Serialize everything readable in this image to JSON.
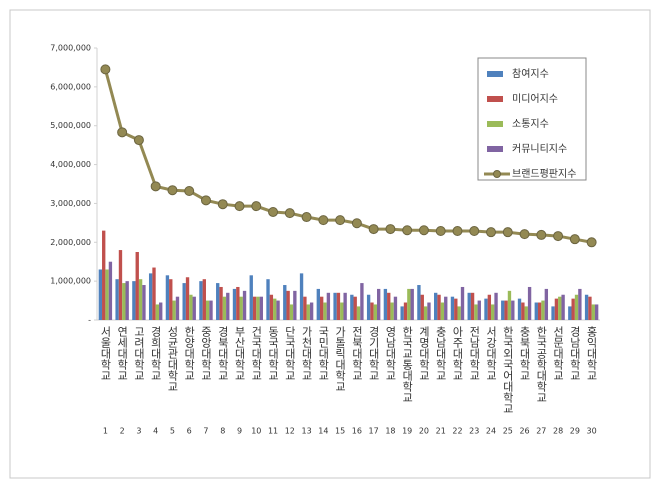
{
  "chart_data": {
    "type": "bar",
    "categories": [
      "서울대학교",
      "연세대학교",
      "고려대학교",
      "경희대학교",
      "성균관대학교",
      "한양대학교",
      "중앙대학교",
      "경북대학교",
      "부산대학교",
      "건국대학교",
      "동국대학교",
      "단국대학교",
      "가천대학교",
      "국민대학교",
      "가톨릭대학교",
      "전북대학교",
      "경기대학교",
      "영남대학교",
      "한국교통대학교",
      "계명대학교",
      "충남대학교",
      "아주대학교",
      "전남대학교",
      "서강대학교",
      "한국외국어대학교",
      "충북대학교",
      "한국공학대학교",
      "선문대학교",
      "경남대학교",
      "홍익대학교"
    ],
    "ranks": [
      1,
      2,
      3,
      4,
      5,
      6,
      7,
      8,
      9,
      10,
      11,
      12,
      13,
      14,
      15,
      16,
      17,
      18,
      19,
      20,
      21,
      22,
      23,
      24,
      25,
      26,
      27,
      28,
      29,
      30
    ],
    "series": [
      {
        "name": "참여지수",
        "type": "bar",
        "color": "#4f81bd",
        "values": [
          1300000,
          1050000,
          1000000,
          1200000,
          1150000,
          950000,
          1000000,
          950000,
          800000,
          1150000,
          1050000,
          900000,
          1200000,
          800000,
          700000,
          650000,
          650000,
          800000,
          350000,
          900000,
          700000,
          600000,
          700000,
          550000,
          500000,
          550000,
          450000,
          350000,
          350000,
          650000
        ]
      },
      {
        "name": "미디어지수",
        "type": "bar",
        "color": "#c0504d",
        "values": [
          2300000,
          1800000,
          1750000,
          1350000,
          1050000,
          1100000,
          1050000,
          850000,
          850000,
          600000,
          650000,
          750000,
          600000,
          600000,
          700000,
          600000,
          450000,
          700000,
          450000,
          650000,
          650000,
          550000,
          700000,
          650000,
          500000,
          450000,
          450000,
          550000,
          550000,
          600000
        ]
      },
      {
        "name": "소통지수",
        "type": "bar",
        "color": "#9bbb59",
        "values": [
          1300000,
          950000,
          1050000,
          400000,
          500000,
          650000,
          500000,
          600000,
          600000,
          600000,
          550000,
          400000,
          400000,
          450000,
          450000,
          350000,
          400000,
          450000,
          800000,
          350000,
          450000,
          350000,
          400000,
          400000,
          750000,
          350000,
          500000,
          600000,
          650000,
          400000
        ]
      },
      {
        "name": "커뮤니티지수",
        "type": "bar",
        "color": "#8064a2",
        "values": [
          1500000,
          1000000,
          900000,
          450000,
          600000,
          600000,
          500000,
          700000,
          750000,
          600000,
          500000,
          750000,
          450000,
          700000,
          700000,
          950000,
          800000,
          600000,
          800000,
          450000,
          600000,
          850000,
          500000,
          700000,
          500000,
          850000,
          800000,
          650000,
          800000,
          400000
        ]
      },
      {
        "name": "브랜드평판지수",
        "type": "line",
        "color": "#938953",
        "values": [
          6450000,
          4830000,
          4630000,
          3440000,
          3340000,
          3320000,
          3080000,
          2980000,
          2930000,
          2930000,
          2780000,
          2750000,
          2650000,
          2570000,
          2570000,
          2490000,
          2340000,
          2340000,
          2310000,
          2310000,
          2290000,
          2290000,
          2290000,
          2260000,
          2260000,
          2210000,
          2190000,
          2160000,
          2080000,
          2000000
        ]
      }
    ],
    "ylim": [
      0,
      7000000
    ],
    "yticks": [
      {
        "value": 0,
        "label": "-"
      },
      {
        "value": 1000000,
        "label": "1,000,000"
      },
      {
        "value": 2000000,
        "label": "2,000,000"
      },
      {
        "value": 3000000,
        "label": "3,000,000"
      },
      {
        "value": 4000000,
        "label": "4,000,000"
      },
      {
        "value": 5000000,
        "label": "5,000,000"
      },
      {
        "value": 6000000,
        "label": "6,000,000"
      },
      {
        "value": 7000000,
        "label": "7,000,000"
      }
    ],
    "legend": "top-right"
  }
}
